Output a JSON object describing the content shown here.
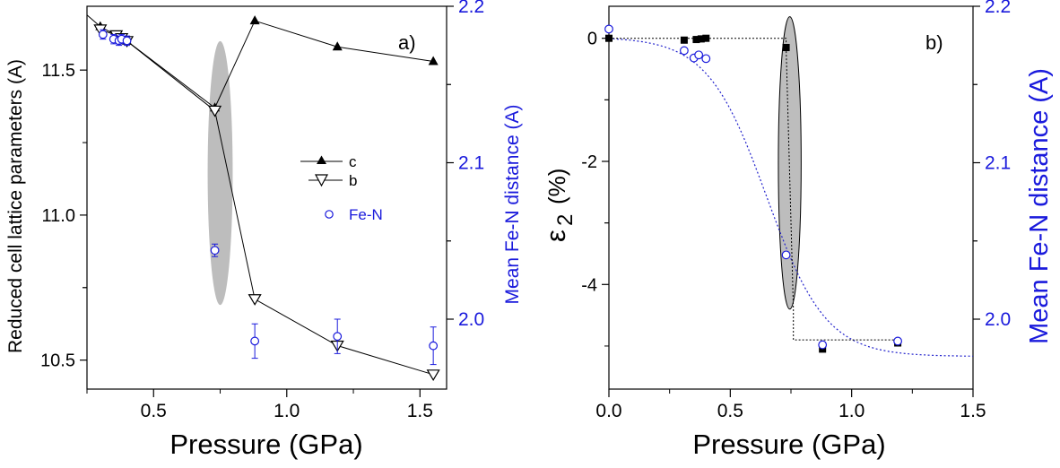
{
  "colors": {
    "axis": "#000000",
    "secondary_axis": "#1a1adc",
    "ellipse_fill": "#bdbdbd",
    "fit_line": "#2222cc"
  },
  "chart_data": [
    {
      "type": "scatter",
      "panel_label": "a)",
      "xlabel": "Pressure (GPa)",
      "ylabel": "Reduced cell lattice parameters (A)",
      "y2label": "Mean Fe-N distance (A)",
      "xlim": [
        0.25,
        1.6
      ],
      "ylim": [
        10.4,
        11.72
      ],
      "y2lim": [
        1.9553,
        2.2
      ],
      "x_ticks": [
        0.5,
        1.0,
        1.5
      ],
      "x_tick_labels": [
        "0.5",
        "1.0",
        "1.5"
      ],
      "y_ticks": [
        10.5,
        11.0,
        11.5
      ],
      "y_tick_labels": [
        "10.5",
        "11.0",
        "11.5"
      ],
      "y2_ticks": [
        2.0,
        2.1,
        2.2
      ],
      "y2_tick_labels": [
        "2.0",
        "2.1",
        "2.2"
      ],
      "grid": false,
      "legend_position": "center-right",
      "shaded_region": {
        "x_center": 0.75,
        "x_halfwidth": 0.047,
        "y_min": 10.69,
        "y_max": 11.6,
        "color": "#bdbdbd"
      },
      "series": [
        {
          "name": "c",
          "marker": "filled-triangle-up",
          "line": true,
          "axis": "left",
          "x": [
            0.3,
            0.4,
            0.73,
            0.88,
            1.19,
            1.55
          ],
          "y": [
            11.65,
            11.6,
            11.37,
            11.67,
            11.58,
            11.53
          ]
        },
        {
          "name": "b",
          "marker": "open-triangle-down",
          "line": true,
          "axis": "left",
          "x": [
            0.3,
            0.36,
            0.38,
            0.4,
            0.73,
            0.88,
            1.19,
            1.55
          ],
          "y": [
            11.64,
            11.62,
            11.61,
            11.6,
            11.36,
            10.71,
            10.55,
            10.45
          ]
        },
        {
          "name": "Fe-N",
          "marker": "open-circle",
          "line": false,
          "axis": "right",
          "color": "#1a1adc",
          "x": [
            0.31,
            0.35,
            0.37,
            0.38,
            0.4,
            0.73,
            0.88,
            1.19,
            1.55
          ],
          "y": [
            2.182,
            2.179,
            2.178,
            2.179,
            2.178,
            2.044,
            1.986,
            1.989,
            1.983
          ],
          "err": [
            0.003,
            0.003,
            0.003,
            0.003,
            0.003,
            0.004,
            0.011,
            0.011,
            0.012
          ]
        }
      ],
      "extra_line": {
        "x": [
          0.25,
          0.3
        ],
        "y": [
          11.69,
          11.65
        ]
      }
    },
    {
      "type": "scatter",
      "panel_label": "b)",
      "xlabel": "Pressure (GPa)",
      "ylabel_symbol": "ε",
      "ylabel_sub": "2",
      "ylabel_unit": "(%)",
      "y2label": "Mean Fe-N distance (A)",
      "xlim": [
        0.0,
        1.5
      ],
      "ylim": [
        -5.7,
        0.52
      ],
      "y2lim": [
        1.9553,
        2.2
      ],
      "x_ticks": [
        0.0,
        0.5,
        1.0,
        1.5
      ],
      "x_tick_labels": [
        "0.0",
        "0.5",
        "1.0",
        "1.5"
      ],
      "y_ticks": [
        0,
        -2,
        -4
      ],
      "y_tick_labels": [
        "0",
        "-2",
        "-4"
      ],
      "y2_ticks": [
        2.0,
        2.1,
        2.2
      ],
      "y2_tick_labels": [
        "2.0",
        "2.1",
        "2.2"
      ],
      "grid": false,
      "shaded_region": {
        "x_center": 0.745,
        "x_halfwidth": 0.047,
        "y_min": -4.4,
        "y_max": 0.35,
        "color": "#bdbdbd"
      },
      "series": [
        {
          "marker": "filled-square",
          "line": "dotted-step",
          "axis": "left",
          "color": "#000000",
          "x": [
            0.0,
            0.31,
            0.36,
            0.38,
            0.4,
            0.73,
            0.88,
            1.19
          ],
          "y": [
            0.0,
            -0.03,
            -0.02,
            -0.01,
            0.0,
            -0.15,
            -5.05,
            -4.95
          ]
        },
        {
          "marker": "open-circle",
          "line": false,
          "axis": "left",
          "color": "#1a1adc",
          "x": [
            0.0,
            0.31,
            0.35,
            0.37,
            0.4,
            0.73,
            0.88,
            1.19
          ],
          "y": [
            0.15,
            -0.2,
            -0.32,
            -0.27,
            -0.33,
            -3.52,
            -4.98,
            -4.92
          ]
        }
      ],
      "fit_curve": {
        "x0": 0.65,
        "k": 8.2,
        "y_top": 0.02,
        "y_bottom": -5.17,
        "color": "#2222cc"
      }
    }
  ]
}
